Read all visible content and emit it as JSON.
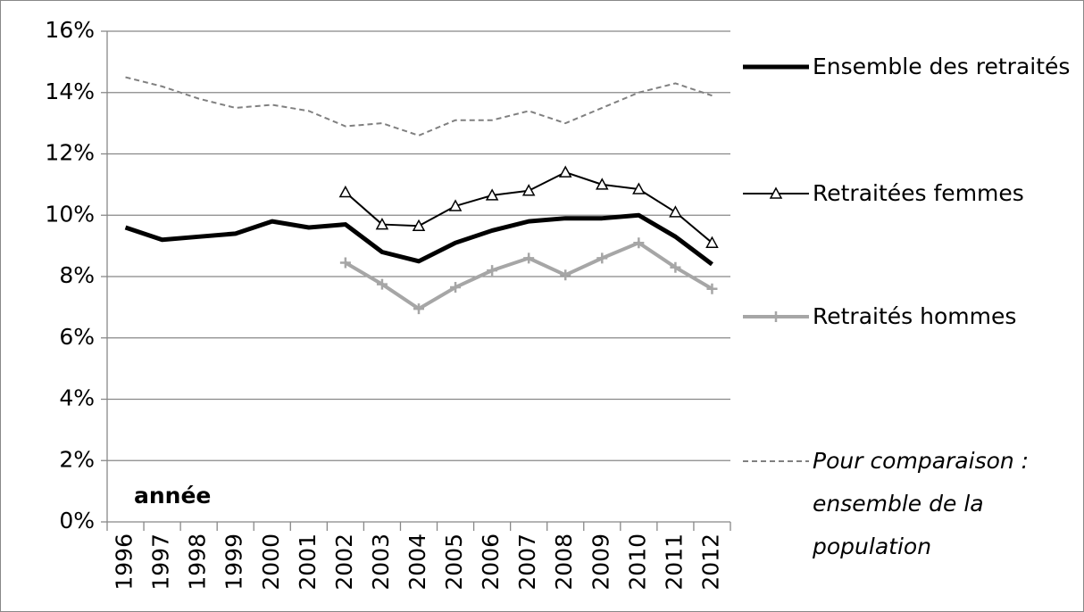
{
  "chart_data": {
    "type": "line",
    "categories": [
      "1996",
      "1997",
      "1998",
      "1999",
      "2000",
      "2001",
      "2002",
      "2003",
      "2004",
      "2005",
      "2006",
      "2007",
      "2008",
      "2009",
      "2010",
      "2011",
      "2012"
    ],
    "annotation": "année",
    "ylim": [
      0,
      16
    ],
    "yticks": [
      {
        "value": 0,
        "label": "0%"
      },
      {
        "value": 2,
        "label": "2%"
      },
      {
        "value": 4,
        "label": "4%"
      },
      {
        "value": 6,
        "label": "6%"
      },
      {
        "value": 8,
        "label": "8%"
      },
      {
        "value": 10,
        "label": "10%"
      },
      {
        "value": 12,
        "label": "12%"
      },
      {
        "value": 14,
        "label": "14%"
      },
      {
        "value": 16,
        "label": "16%"
      }
    ],
    "grid": true,
    "legend": "right",
    "series": [
      {
        "name": "Ensemble des retraités",
        "color": "#000000",
        "line_width": 5,
        "dash": "solid",
        "marker": "none",
        "values": [
          9.6,
          9.2,
          9.3,
          9.4,
          9.8,
          9.6,
          9.7,
          8.8,
          8.5,
          9.1,
          9.5,
          9.8,
          9.9,
          9.9,
          10.0,
          9.3,
          8.4
        ]
      },
      {
        "name": "Retraitées femmes",
        "color": "#000000",
        "line_width": 2,
        "dash": "solid",
        "marker": "triangle",
        "values": [
          null,
          null,
          null,
          null,
          null,
          null,
          10.75,
          9.7,
          9.65,
          10.3,
          10.65,
          10.8,
          11.4,
          11.0,
          10.85,
          10.1,
          9.1
        ]
      },
      {
        "name": "Retraités hommes",
        "color": "#a6a6a6",
        "line_width": 4,
        "dash": "solid",
        "marker": "plus",
        "values": [
          null,
          null,
          null,
          null,
          null,
          null,
          8.45,
          7.75,
          6.95,
          7.65,
          8.2,
          8.6,
          8.05,
          8.6,
          9.1,
          8.3,
          7.6
        ]
      },
      {
        "name": "Pour comparaison : ensemble de la population",
        "color": "#808080",
        "line_width": 2,
        "dash": "dashed",
        "marker": "none",
        "italic": true,
        "values": [
          14.5,
          14.2,
          13.8,
          13.5,
          13.6,
          13.4,
          12.9,
          13.0,
          12.6,
          13.1,
          13.1,
          13.4,
          13.0,
          13.5,
          14.0,
          14.3,
          13.9
        ]
      }
    ]
  }
}
